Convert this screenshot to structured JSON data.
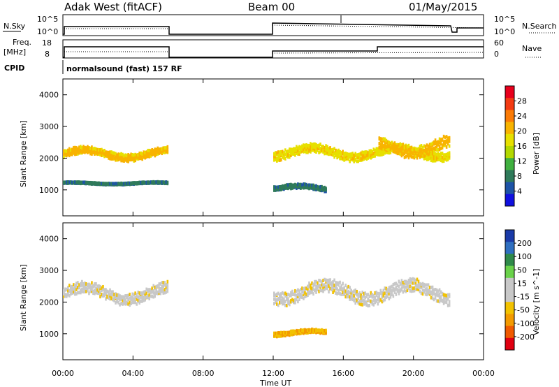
{
  "header": {
    "station": "Adak West (fitACF)",
    "beam": "Beam 00",
    "date": "01/May/2015"
  },
  "top_panels": {
    "nsky_label": "N.Sky",
    "nsky_ticks": [
      "10^5",
      "10^0"
    ],
    "nsearch_label": "N.Search",
    "nsearch_ticks": [
      "10^5",
      "10^0"
    ],
    "freq_label": "Freq.",
    "freq_unit": "[MHz]",
    "freq_ticks": [
      "18",
      "8"
    ],
    "nave_label": "Nave",
    "nave_ticks": [
      "60",
      "0"
    ],
    "cpid_label": "CPID",
    "cpid_text": "normalsound (fast) 157 RF"
  },
  "x_axis": {
    "label": "Time UT",
    "ticks": [
      "00:00",
      "04:00",
      "08:00",
      "12:00",
      "16:00",
      "20:00",
      "00:00"
    ]
  },
  "chart_data": [
    {
      "type": "heatmap",
      "title": "",
      "xlabel": "Time UT",
      "ylabel": "Slant Range [km]",
      "xlim": [
        0,
        24
      ],
      "ylim": [
        180,
        4500
      ],
      "yticks": [
        "4000",
        "3000",
        "2000",
        "1000"
      ],
      "colorbar_label": "Power [dB]",
      "colorbar_ticks": [
        "28",
        "24",
        "20",
        "16",
        "12",
        "8",
        "4"
      ],
      "colorbar_colors": [
        "#e8001c",
        "#f33a12",
        "#fb7b06",
        "#f8b300",
        "#e7e000",
        "#b2d800",
        "#40b040",
        "#2f7a5a",
        "#1d53a6",
        "#1010e0"
      ],
      "data_gaps_hours": [
        [
          6,
          12
        ]
      ],
      "echo_bands": [
        {
          "t_start": 0,
          "t_end": 6,
          "range_km": [
            1900,
            2400
          ],
          "peak_power_db": 22
        },
        {
          "t_start": 0,
          "t_end": 6,
          "range_km": [
            1150,
            1250
          ],
          "peak_power_db": 8
        },
        {
          "t_start": 12,
          "t_end": 22,
          "range_km": [
            1900,
            2500
          ],
          "peak_power_db": 20
        },
        {
          "t_start": 12,
          "t_end": 15,
          "range_km": [
            900,
            1200
          ],
          "peak_power_db": 8
        },
        {
          "t_start": 18,
          "t_end": 22,
          "range_km": [
            2000,
            2800
          ],
          "peak_power_db": 22
        }
      ]
    },
    {
      "type": "heatmap",
      "title": "",
      "xlabel": "Time UT",
      "ylabel": "Slant Range [km]",
      "xlim": [
        0,
        24
      ],
      "ylim": [
        180,
        4500
      ],
      "yticks": [
        "4000",
        "3000",
        "2000",
        "1000"
      ],
      "colorbar_label": "Velocity [m s^-1]",
      "colorbar_ticks": [
        "200",
        "100",
        "50",
        "15",
        "-15",
        "-50",
        "-100",
        "-200"
      ],
      "colorbar_colors": [
        "#1a3aa8",
        "#2f6fc0",
        "#2f8a4a",
        "#6ad24a",
        "#c8c8c8",
        "#c8c8c8",
        "#f2c200",
        "#f39a00",
        "#f05a00",
        "#e00010"
      ],
      "data_gaps_hours": [
        [
          6,
          12
        ]
      ],
      "echo_bands": [
        {
          "t_start": 0,
          "t_end": 6,
          "range_km": [
            1900,
            2700
          ],
          "velocity_ms": 0
        },
        {
          "t_start": 12,
          "t_end": 22,
          "range_km": [
            1900,
            2800
          ],
          "velocity_ms": 0
        },
        {
          "t_start": 12,
          "t_end": 15,
          "range_km": [
            900,
            1150
          ],
          "velocity_ms": -60
        }
      ]
    }
  ]
}
